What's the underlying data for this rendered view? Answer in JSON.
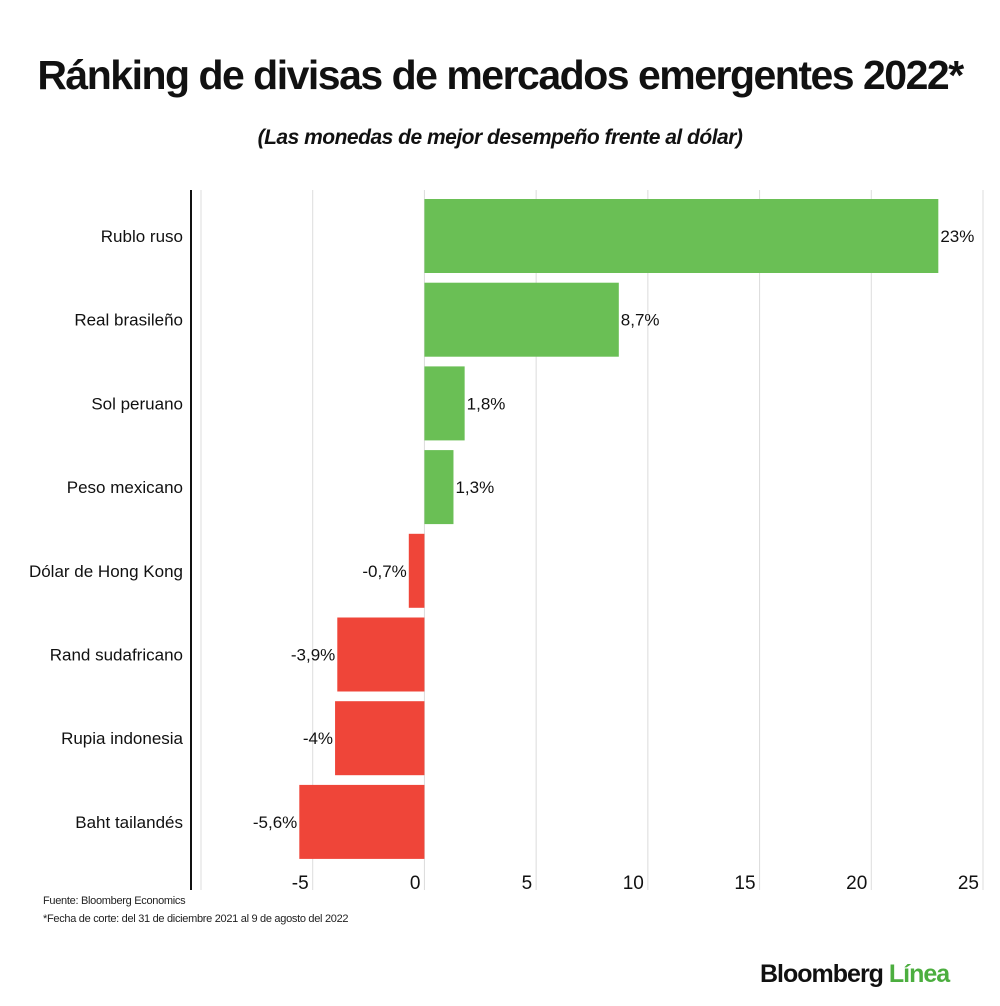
{
  "title": "Ránking de divisas de mercados emergentes 2022*",
  "subtitle": "(Las monedas de mejor desempeño frente al dólar)",
  "chart_data": {
    "type": "bar",
    "orientation": "horizontal",
    "categories": [
      "Rublo ruso",
      "Real brasileño",
      "Sol peruano",
      "Peso mexicano",
      "Dólar de Hong Kong",
      "Rand sudafricano",
      "Rupia indonesia",
      "Baht tailandés"
    ],
    "values": [
      23,
      8.7,
      1.8,
      1.3,
      -0.7,
      -3.9,
      -4,
      -5.6
    ],
    "data_labels": [
      "23%",
      "8,7%",
      "1,8%",
      "1,3%",
      "-0,7%",
      "-3,9%",
      "-4%",
      "-5,6%"
    ],
    "xlim": [
      -10,
      25
    ],
    "xticks": [
      -5,
      0,
      5,
      10,
      15,
      20,
      25
    ],
    "xtick_labels": [
      "-5",
      "0",
      "5",
      "10",
      "15",
      "20",
      "25"
    ],
    "grid": true,
    "colors": {
      "positive": "#6abf55",
      "negative": "#ef4539"
    }
  },
  "footer": {
    "source": "Fuente: Bloomberg Economics",
    "note": "*Fecha de corte: del 31 de diciembre 2021 al 9 de agosto del 2022"
  },
  "logo": {
    "part1": "Bloomberg",
    "part2": "Línea"
  }
}
